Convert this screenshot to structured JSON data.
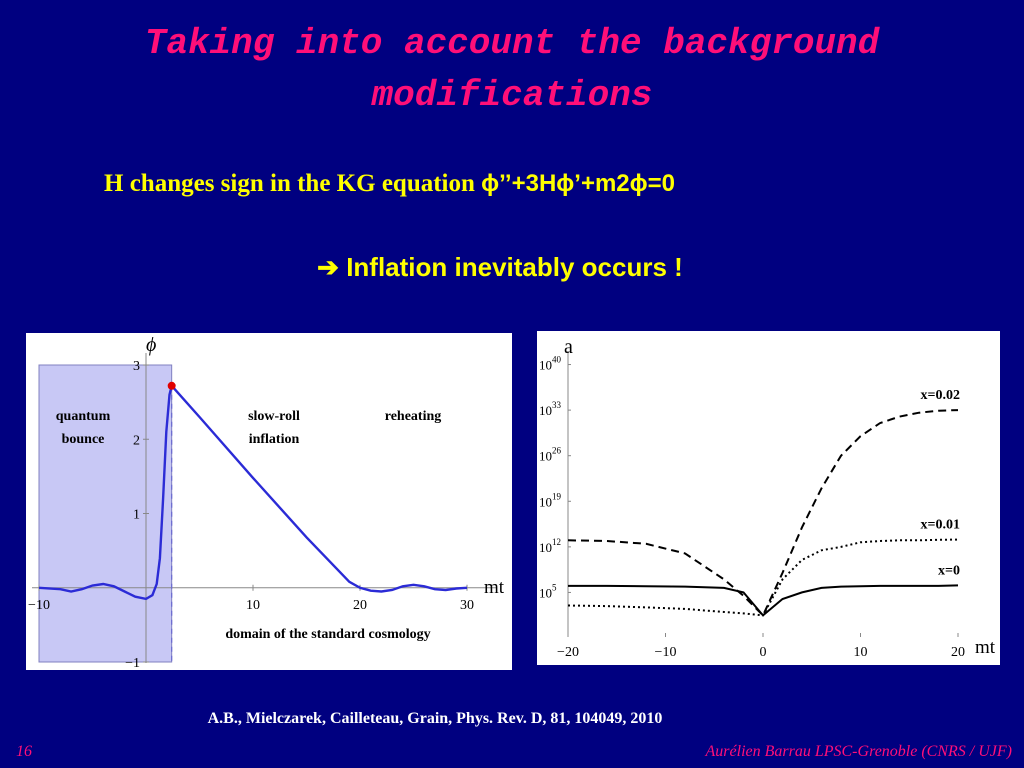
{
  "slide": {
    "title_line1": "Taking into account the background",
    "title_line2": "modifications",
    "kg_text": "H changes sign in the KG equation ",
    "kg_equation": "ϕ’’+3Hϕ’+m2ϕ=0",
    "inflation_arrow": "➔",
    "inflation_text": " Inflation inevitably occurs !",
    "citation": "A.B., Mielczarek, Cailleteau, Grain, Phys. Rev. D, 81, 104049, 2010",
    "slide_number": "16",
    "author": "Aurélien Barrau  LPSC-Grenoble (CNRS / UJF)"
  },
  "colors": {
    "background": "#000080",
    "title": "#ff0f78",
    "highlight": "#ffff00",
    "curve": "#2b2bd6",
    "bounce_region": "#c8c8f5",
    "marker": "#e00000"
  },
  "chart_data": [
    {
      "type": "line",
      "ylabel": "ϕ",
      "xlabel": "mt",
      "xlim": [
        -10,
        30
      ],
      "ylim": [
        -1,
        3
      ],
      "xticks": [
        "-10",
        "10",
        "20",
        "30"
      ],
      "yticks": [
        "-1",
        "1",
        "2",
        "3"
      ],
      "region_labels": {
        "bounce_line1": "quantum",
        "bounce_line2": "bounce",
        "slowroll_line1": "slow-roll",
        "slowroll_line2": "inflation",
        "reheating": "reheating",
        "domain": "domain of the standard cosmology"
      },
      "shaded_region": {
        "x_from": -10,
        "x_to": 2.4
      },
      "marker_point": {
        "x": 2.4,
        "y": 2.72
      },
      "series": [
        {
          "x": [
            -10,
            -8,
            -7,
            -6,
            -5,
            -4,
            -3,
            -2,
            -1,
            0,
            0.6,
            1,
            1.3,
            1.6,
            1.9,
            2.2,
            2.4,
            5,
            10,
            15,
            19,
            20,
            21,
            22,
            23,
            24,
            25,
            26,
            27,
            28,
            29,
            30
          ],
          "y": [
            0,
            -0.02,
            -0.05,
            -0.02,
            0.03,
            0.05,
            0.02,
            -0.05,
            -0.12,
            -0.15,
            -0.1,
            0.05,
            0.4,
            1.2,
            2.1,
            2.6,
            2.72,
            2.3,
            1.48,
            0.68,
            0.08,
            0,
            -0.04,
            -0.05,
            -0.03,
            0.02,
            0.04,
            0.02,
            -0.02,
            -0.03,
            -0.01,
            0
          ]
        }
      ]
    },
    {
      "type": "line",
      "ylabel": "a",
      "xlabel": "mt",
      "yscale": "log",
      "xlim": [
        -20,
        20
      ],
      "ylim": [
        1,
        1e+43
      ],
      "xticks": [
        "-20",
        "-10",
        "0",
        "10",
        "20"
      ],
      "yticks": [
        "10^40",
        "10^33",
        "10^26",
        "10^19",
        "10^12",
        "10^5"
      ],
      "series": [
        {
          "name": "x=0.02",
          "style": "dashed",
          "x": [
            -20,
            -16,
            -12,
            -8,
            -4,
            -2,
            0,
            2,
            4,
            6,
            8,
            10,
            12,
            14,
            16,
            18,
            20
          ],
          "y": [
            10000000000000.0,
            8000000000000.0,
            3000000000000.0,
            100000000000.0,
            10000000.0,
            30000.0,
            30.0,
            100000000.0,
            1000000000000000.0,
            1e+21,
            1e+26,
            1e+29,
            1e+31,
            1e+32,
            4e+32,
            8e+32,
            1e+33
          ]
        },
        {
          "name": "x=0.01",
          "style": "dotted",
          "x": [
            -20,
            -16,
            -12,
            -8,
            -4,
            -2,
            0,
            2,
            4,
            6,
            8,
            10,
            12,
            14,
            16,
            18,
            20
          ],
          "y": [
            1000.0,
            800.0,
            500.0,
            300.0,
            100.0,
            60.0,
            30.0,
            10000000.0,
            10000000000.0,
            300000000000.0,
            1000000000000.0,
            5000000000000.0,
            8000000000000.0,
            10000000000000.0,
            10000000000000.0,
            12000000000000.0,
            13000000000000.0
          ]
        },
        {
          "name": "x=0",
          "style": "solid",
          "x": [
            -20,
            -16,
            -12,
            -8,
            -4,
            -2,
            0,
            2,
            4,
            6,
            8,
            10,
            12,
            14,
            16,
            18,
            20
          ],
          "y": [
            1000000.0,
            1000000.0,
            900000.0,
            800000.0,
            500000.0,
            100000.0,
            30.0,
            10000.0,
            100000.0,
            500000.0,
            800000.0,
            900000.0,
            1000000.0,
            1000000.0,
            1000000.0,
            1000000.0,
            1200000.0
          ]
        }
      ]
    }
  ]
}
